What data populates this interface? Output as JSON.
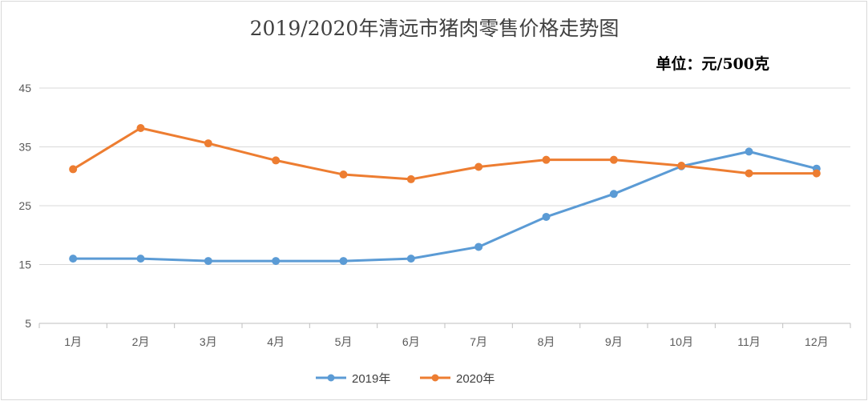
{
  "title": "2019/2020年清远市猪肉零售价格走势图",
  "unit_label": "单位：元/500克",
  "colors": {
    "series_2019": "#5b9bd5",
    "series_2020": "#ed7d31",
    "grid": "#d9d9d9",
    "axis": "#bfbfbf"
  },
  "chart_data": {
    "type": "line",
    "title": "2019/2020年清远市猪肉零售价格走势图",
    "categories": [
      "1月",
      "2月",
      "3月",
      "4月",
      "5月",
      "6月",
      "7月",
      "8月",
      "9月",
      "10月",
      "11月",
      "12月"
    ],
    "series": [
      {
        "name": "2019年",
        "values": [
          16.0,
          16.0,
          15.6,
          15.6,
          15.6,
          16.0,
          18.0,
          23.1,
          27.0,
          31.7,
          34.2,
          31.3
        ]
      },
      {
        "name": "2020年",
        "values": [
          31.2,
          38.2,
          35.6,
          32.7,
          30.3,
          29.5,
          31.6,
          32.8,
          32.8,
          31.8,
          30.5,
          30.5
        ]
      }
    ],
    "yticks": [
      45,
      35,
      25,
      15,
      5
    ],
    "ylim": [
      5,
      45
    ],
    "grid": true,
    "legend_position": "bottom"
  }
}
